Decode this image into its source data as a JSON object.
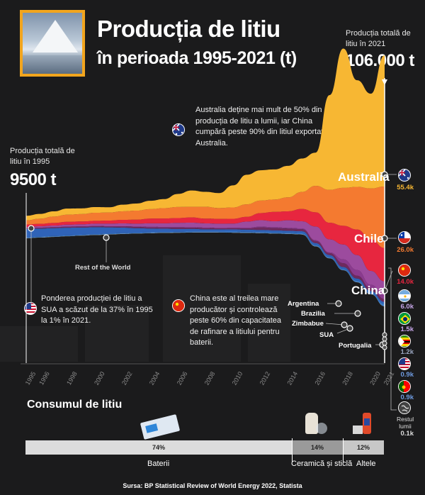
{
  "header": {
    "title": "Producția de litiu",
    "subtitle": "în perioada 1995-2021 (t)"
  },
  "start_total": {
    "label": "Producția totală de litiu în 1995",
    "value": "9500 t"
  },
  "end_total": {
    "label": "Producția totală de litiu în 2021",
    "value": "106.000 t"
  },
  "notes": {
    "australia": "Australia deține mai mult de 50% din producția de litiu a lumii, iar China cumpără peste 90% din litiul exportat de Australia.",
    "usa": "Ponderea producției de litiu a SUA a scăzut de la 37% în 1995 la 1% în 2021.",
    "china": "China este al treilea mare producător și controlează peste 60% din capacitatea de rafinare a litiului pentru baterii."
  },
  "colors": {
    "australia": "#f7b733",
    "chile": "#f47a30",
    "china": "#e7263f",
    "argentina": "#9c4b9e",
    "brazil": "#8a3a8e",
    "zimbabwe": "#6e2a5e",
    "usa": "#2f63b8",
    "portugal": "#3b7dc9",
    "rest": "#c9c9c9",
    "accent": "#f2a51e",
    "background": "#1b1b1c"
  },
  "chart_data": {
    "type": "area",
    "x": [
      1995,
      1996,
      1997,
      1998,
      1999,
      2000,
      2001,
      2002,
      2003,
      2004,
      2005,
      2006,
      2007,
      2008,
      2009,
      2010,
      2011,
      2012,
      2013,
      2014,
      2015,
      2016,
      2017,
      2018,
      2019,
      2020,
      2021
    ],
    "x_tick_labels": [
      "1995",
      "1996",
      "1998",
      "2000",
      "2002",
      "2004",
      "2006",
      "2008",
      "2010",
      "2012",
      "2014",
      "2016",
      "2018",
      "2020",
      "2021"
    ],
    "series": [
      {
        "name": "Australia",
        "flag": "australia",
        "value_label": "55.4k",
        "values": [
          1900,
          2000,
          2200,
          2600,
          2400,
          2400,
          2200,
          2800,
          3000,
          3500,
          3800,
          5500,
          6900,
          6300,
          6300,
          9300,
          12500,
          12800,
          12700,
          13300,
          14100,
          14000,
          40000,
          58800,
          45000,
          40000,
          55400
        ]
      },
      {
        "name": "Chile",
        "flag": "chile",
        "value_label": "26.0k",
        "values": [
          1800,
          2200,
          2700,
          3000,
          3100,
          3400,
          3400,
          3600,
          3800,
          4000,
          4400,
          4700,
          4500,
          5000,
          4600,
          4800,
          5300,
          5300,
          5200,
          5900,
          7200,
          11200,
          13900,
          16000,
          18000,
          21500,
          26000
        ]
      },
      {
        "name": "China",
        "flag": "china",
        "value_label": "14.0k",
        "values": [
          1000,
          1000,
          1100,
          1200,
          1200,
          1200,
          1300,
          1500,
          1700,
          2000,
          2000,
          2000,
          2200,
          2000,
          2000,
          2000,
          2000,
          3000,
          4000,
          3800,
          5200,
          6000,
          7000,
          7900,
          10800,
          13300,
          14000
        ]
      },
      {
        "name": "Argentina",
        "flag": "argentina",
        "value_label": "6.0k",
        "values": [
          500,
          600,
          700,
          800,
          900,
          1000,
          1100,
          1200,
          1200,
          1500,
          1600,
          1800,
          1900,
          1800,
          1800,
          1800,
          2600,
          2700,
          2500,
          3200,
          3000,
          5800,
          5500,
          6300,
          6300,
          5900,
          6000
        ]
      },
      {
        "name": "Brazilia",
        "flag": "brazil",
        "value_label": "1.5k",
        "values": [
          100,
          100,
          100,
          100,
          100,
          100,
          100,
          100,
          200,
          200,
          200,
          200,
          200,
          200,
          200,
          200,
          300,
          300,
          300,
          300,
          300,
          300,
          300,
          1600,
          2400,
          1400,
          1500
        ]
      },
      {
        "name": "Zimbabue",
        "flag": "zimbabwe",
        "value_label": "1.2k",
        "values": [
          300,
          300,
          300,
          400,
          400,
          400,
          400,
          500,
          500,
          500,
          500,
          600,
          500,
          500,
          400,
          500,
          500,
          1100,
          1000,
          900,
          900,
          900,
          800,
          1600,
          1200,
          1200,
          1200
        ]
      },
      {
        "name": "SUA",
        "flag": "usa",
        "value_label": "0.9k",
        "values": [
          3500,
          3400,
          3300,
          3200,
          3000,
          2900,
          2600,
          2300,
          1900,
          1600,
          1400,
          1200,
          1100,
          900,
          900,
          900,
          900,
          900,
          900,
          900,
          900,
          900,
          900,
          900,
          900,
          900,
          900
        ]
      },
      {
        "name": "Portugalia",
        "flag": "portugal",
        "value_label": "0.9k",
        "values": [
          300,
          300,
          300,
          300,
          300,
          300,
          300,
          300,
          300,
          300,
          300,
          300,
          400,
          400,
          400,
          400,
          400,
          400,
          400,
          400,
          400,
          400,
          400,
          400,
          600,
          400,
          900
        ]
      },
      {
        "name": "Rest of the World",
        "flag": "world",
        "value_label": "0.1k",
        "values": [
          100,
          100,
          100,
          100,
          100,
          100,
          100,
          100,
          100,
          100,
          100,
          100,
          100,
          100,
          100,
          100,
          100,
          100,
          100,
          100,
          100,
          100,
          100,
          100,
          100,
          100,
          100
        ]
      }
    ],
    "region_labels": {
      "australia": "Australia",
      "chile": "Chile",
      "china": "China",
      "argentina": "Argentina",
      "brazil": "Brazilia",
      "zimbabwe": "Zimbabue",
      "usa": "SUA",
      "portugal": "Portugalia",
      "rest": "Rest of the World",
      "rest_short": "Restul lumii"
    }
  },
  "consumption": {
    "title": "Consumul de litiu",
    "segments": [
      {
        "label": "Baterii",
        "percent": "74%",
        "share": 74,
        "color": "#d9d9d9"
      },
      {
        "label": "Ceramică și sticlă",
        "percent": "14%",
        "share": 14,
        "color": "#9a9a9a"
      },
      {
        "label": "Altele",
        "percent": "12%",
        "share": 12,
        "color": "#c7c7c7"
      }
    ]
  },
  "source": "Sursa: BP Statistical Review of World Energy 2022, Statista"
}
